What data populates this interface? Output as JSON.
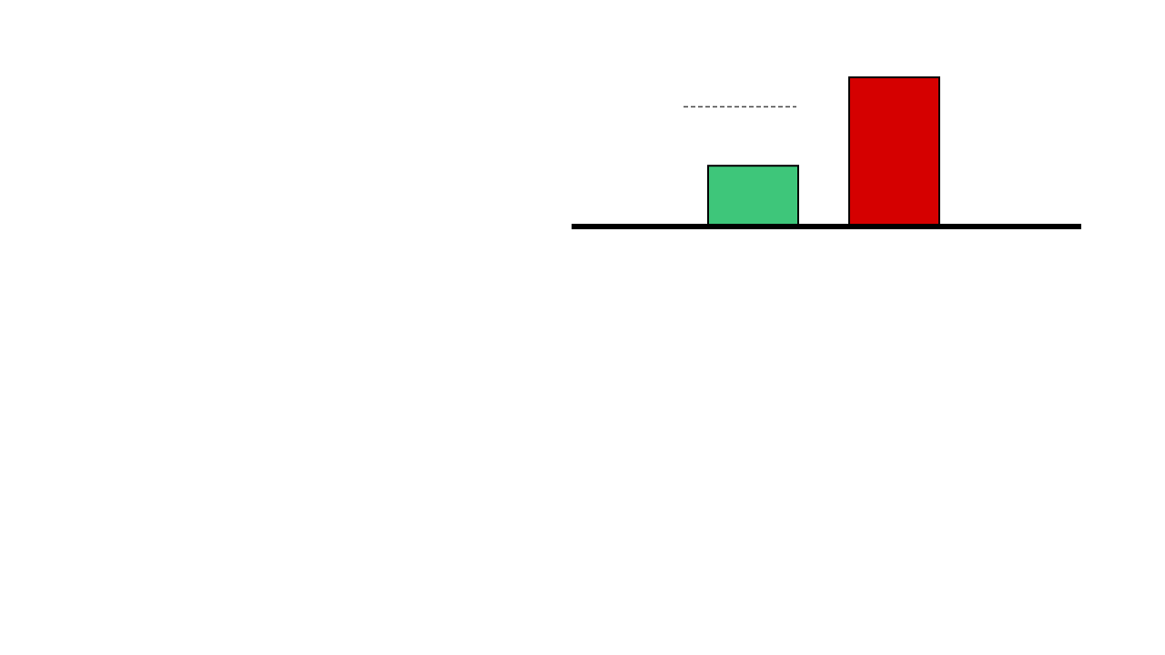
{
  "chart_data": {
    "type": "bar",
    "title": "",
    "xlabel": "",
    "ylabel": "",
    "ylim": [
      0,
      5
    ],
    "grid": false,
    "legend": "none",
    "series": [
      {
        "values": [
          2,
          5
        ],
        "colors": [
          "#3ec67a",
          "#d50000"
        ]
      }
    ],
    "reference_line": {
      "value": 4,
      "style": "dashed",
      "aligned_with_bar": 0
    },
    "colors": {
      "background": "#ffffff",
      "stroke": "#000000",
      "bar_1": "#3ec67a",
      "bar_2": "#d50000",
      "reference_line": "#444444"
    }
  }
}
